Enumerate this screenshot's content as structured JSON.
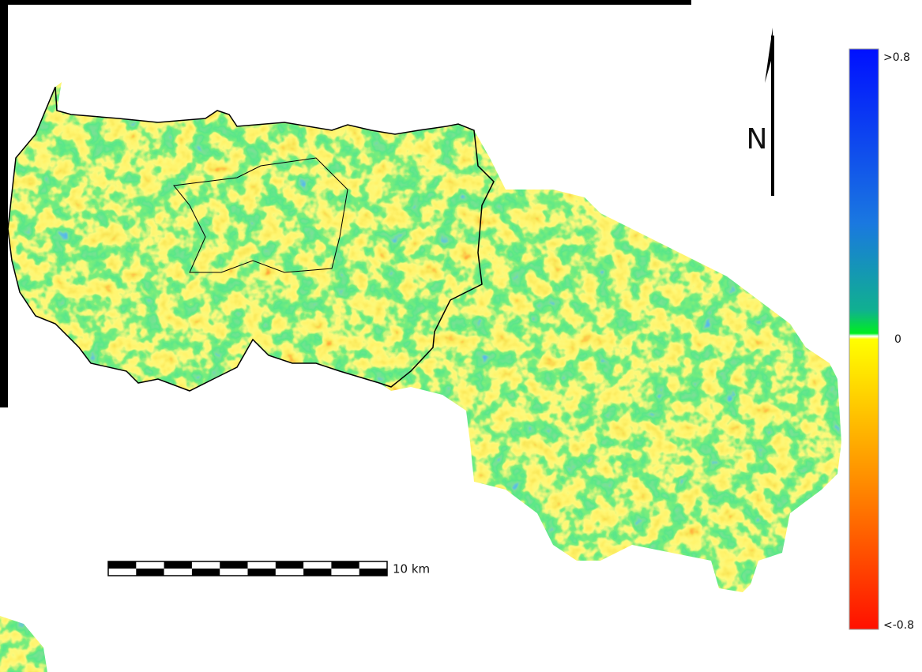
{
  "map": {
    "north_label": "N",
    "scale_bar": {
      "label": "10 km"
    },
    "legend": {
      "top_label": ">0.8",
      "middle_label": "0",
      "bottom_label": "<-0.8"
    }
  }
}
